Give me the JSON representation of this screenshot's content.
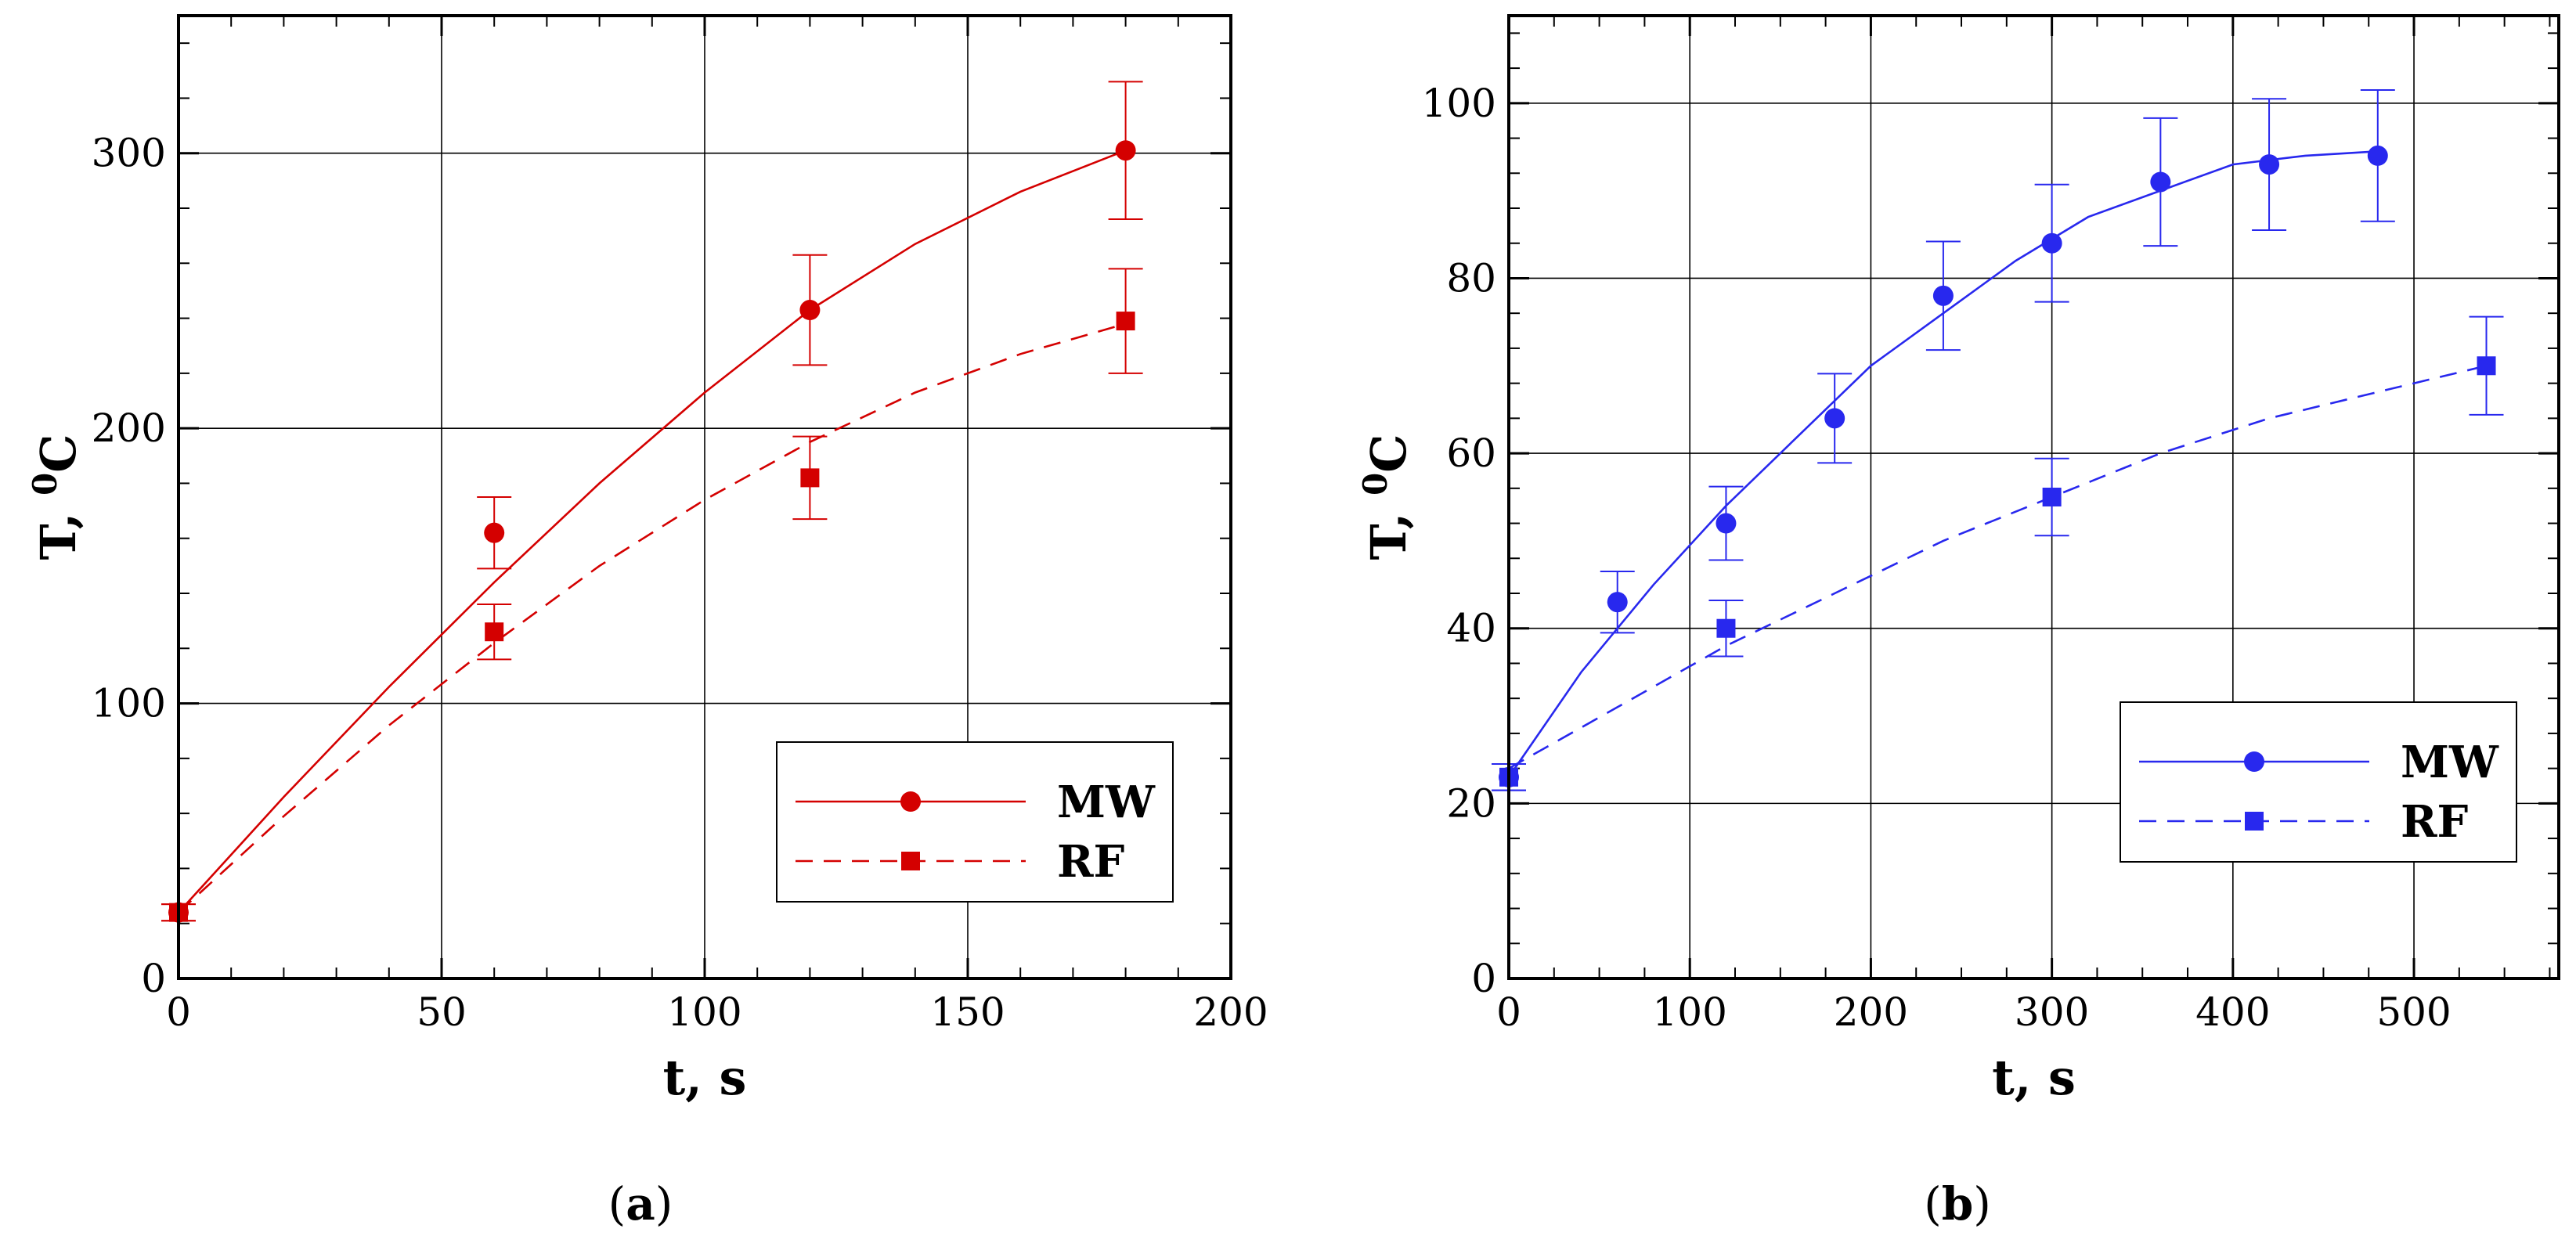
{
  "chart_data": [
    {
      "type": "line",
      "panel_label": "a",
      "xlabel": "t, s",
      "ylabel": {
        "main": "T, ",
        "sup": "0",
        "unit": "C"
      },
      "xlim": [
        0,
        200
      ],
      "ylim": [
        0,
        350
      ],
      "xticks": [
        0,
        50,
        100,
        150,
        200
      ],
      "yticks": [
        0,
        100,
        200,
        300
      ],
      "grid": true,
      "legend_position": "bottom-right",
      "color": "#d40000",
      "series": [
        {
          "name": "MW",
          "marker": "circle",
          "line_style": "solid",
          "points": [
            {
              "x": 0,
              "y": 24,
              "err": 3
            },
            {
              "x": 60,
              "y": 162,
              "err": 13
            },
            {
              "x": 120,
              "y": 243,
              "err": 20
            },
            {
              "x": 180,
              "y": 301,
              "err": 25
            }
          ],
          "fit": [
            [
              0,
              24
            ],
            [
              20,
              66
            ],
            [
              40,
              106
            ],
            [
              60,
              144
            ],
            [
              80,
              180
            ],
            [
              100,
              213
            ],
            [
              120,
              243
            ],
            [
              140,
              267
            ],
            [
              160,
              286
            ],
            [
              180,
              301
            ]
          ]
        },
        {
          "name": "RF",
          "marker": "square",
          "line_style": "dashed",
          "points": [
            {
              "x": 0,
              "y": 24,
              "err": 3
            },
            {
              "x": 60,
              "y": 126,
              "err": 10
            },
            {
              "x": 120,
              "y": 182,
              "err": 15
            },
            {
              "x": 180,
              "y": 239,
              "err": 19
            }
          ],
          "fit": [
            [
              0,
              24
            ],
            [
              20,
              59
            ],
            [
              40,
              92
            ],
            [
              60,
              122
            ],
            [
              80,
              150
            ],
            [
              100,
              174
            ],
            [
              120,
              195
            ],
            [
              140,
              213
            ],
            [
              160,
              227
            ],
            [
              180,
              238
            ]
          ]
        }
      ]
    },
    {
      "type": "line",
      "panel_label": "b",
      "xlabel": "t, s",
      "ylabel": {
        "main": "T, ",
        "sup": "0",
        "unit": "C"
      },
      "xlim": [
        0,
        580
      ],
      "ylim": [
        0,
        110
      ],
      "xticks": [
        0,
        100,
        200,
        300,
        400,
        500
      ],
      "yticks": [
        0,
        20,
        40,
        60,
        80,
        100
      ],
      "grid": true,
      "legend_position": "bottom-right",
      "color": "#2828ee",
      "series": [
        {
          "name": "MW",
          "marker": "circle",
          "line_style": "solid",
          "points": [
            {
              "x": 0,
              "y": 23,
              "err": 1.5
            },
            {
              "x": 60,
              "y": 43,
              "err": 3.5
            },
            {
              "x": 120,
              "y": 52,
              "err": 4.2
            },
            {
              "x": 180,
              "y": 64,
              "err": 5.1
            },
            {
              "x": 240,
              "y": 78,
              "err": 6.2
            },
            {
              "x": 300,
              "y": 84,
              "err": 6.7
            },
            {
              "x": 360,
              "y": 91,
              "err": 7.3
            },
            {
              "x": 420,
              "y": 93,
              "err": 7.5
            },
            {
              "x": 480,
              "y": 94,
              "err": 7.5
            }
          ],
          "fit": [
            [
              0,
              23
            ],
            [
              40,
              35
            ],
            [
              80,
              45
            ],
            [
              120,
              54
            ],
            [
              160,
              62
            ],
            [
              200,
              70
            ],
            [
              240,
              76
            ],
            [
              280,
              82
            ],
            [
              320,
              87
            ],
            [
              360,
              90
            ],
            [
              400,
              93
            ],
            [
              440,
              94
            ],
            [
              480,
              94.5
            ]
          ]
        },
        {
          "name": "RF",
          "marker": "square",
          "line_style": "dashed",
          "points": [
            {
              "x": 0,
              "y": 23,
              "err": 1.5
            },
            {
              "x": 120,
              "y": 40,
              "err": 3.2
            },
            {
              "x": 300,
              "y": 55,
              "err": 4.4
            },
            {
              "x": 540,
              "y": 70,
              "err": 5.6
            }
          ],
          "fit": [
            [
              0,
              24
            ],
            [
              60,
              31
            ],
            [
              120,
              38
            ],
            [
              180,
              44
            ],
            [
              240,
              50
            ],
            [
              300,
              55
            ],
            [
              360,
              60
            ],
            [
              420,
              64
            ],
            [
              480,
              67
            ],
            [
              540,
              70
            ]
          ]
        }
      ]
    }
  ]
}
